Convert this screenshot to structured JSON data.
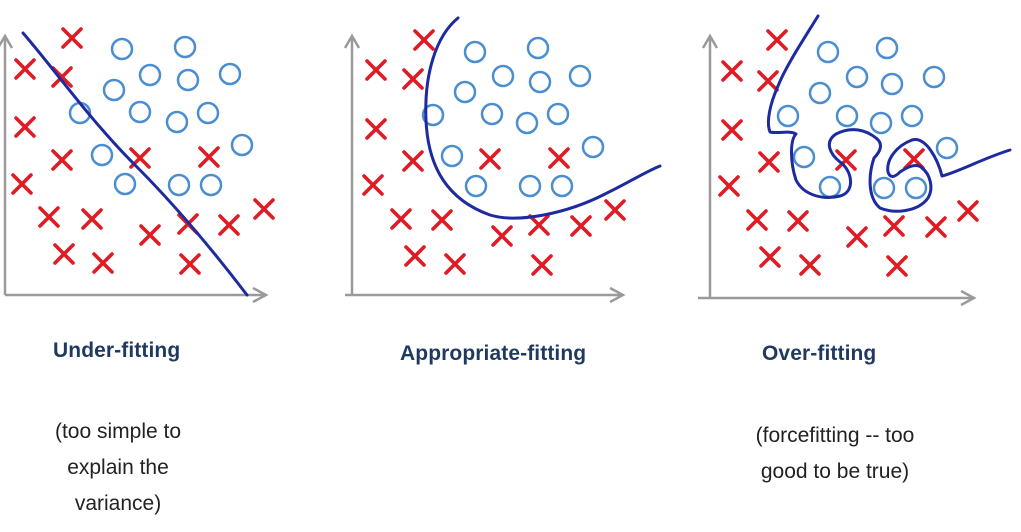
{
  "panels": [
    {
      "title": "Under-fitting",
      "caption": [
        "(too simple to",
        "explain the",
        "variance)"
      ]
    },
    {
      "title": "Appropriate-fitting",
      "caption": []
    },
    {
      "title": "Over-fitting",
      "caption": [
        "(forcefitting -- too",
        "good to be true)"
      ]
    }
  ],
  "colors": {
    "cross": "#e01b24",
    "circle": "#4a8ed0",
    "boundary": "#1e2aa0",
    "axis": "#9a9a9a"
  }
}
